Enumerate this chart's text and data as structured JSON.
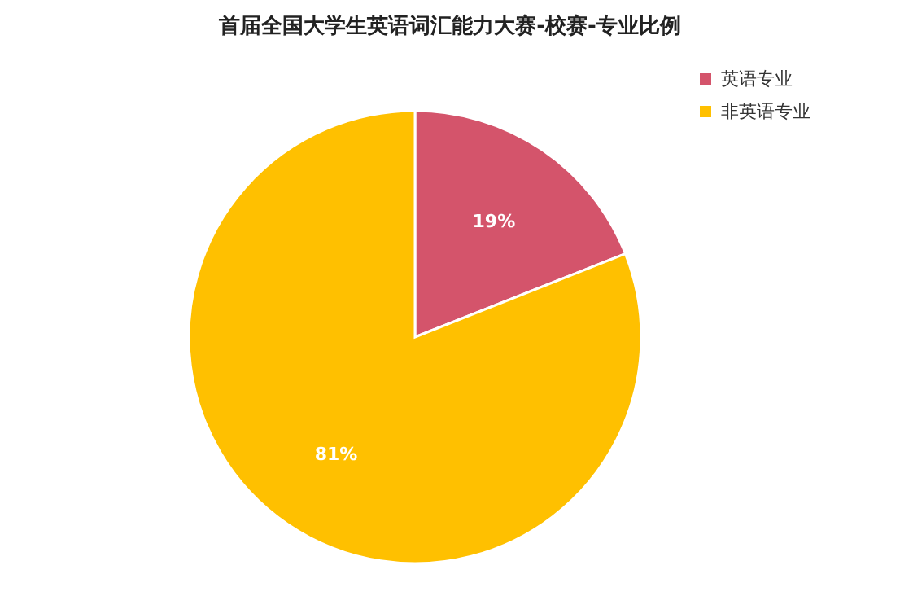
{
  "chart_data": {
    "type": "pie",
    "title": "首届全国大学生英语词汇能力大赛-校赛-专业比例",
    "categories": [
      "英语专业",
      "非英语专业"
    ],
    "values": [
      19,
      81
    ],
    "colors": [
      "#d4546b",
      "#ffc000"
    ],
    "value_labels": [
      "19%",
      "81%"
    ],
    "legend": "top right"
  }
}
